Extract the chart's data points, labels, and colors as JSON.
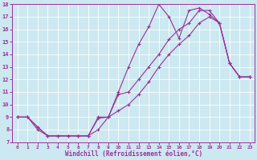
{
  "title": "",
  "xlabel": "Windchill (Refroidissement éolien,°C)",
  "bg_color": "#cce8f0",
  "line_color": "#993399",
  "xlim": [
    -0.5,
    23.5
  ],
  "ylim": [
    7,
    18
  ],
  "xticks": [
    0,
    1,
    2,
    3,
    4,
    5,
    6,
    7,
    8,
    9,
    10,
    11,
    12,
    13,
    14,
    15,
    16,
    17,
    18,
    19,
    20,
    21,
    22,
    23
  ],
  "yticks": [
    7,
    8,
    9,
    10,
    11,
    12,
    13,
    14,
    15,
    16,
    17,
    18
  ],
  "line1_x": [
    0,
    1,
    2,
    3,
    4,
    5,
    6,
    7,
    8,
    9,
    10,
    11,
    12,
    13,
    14,
    15,
    16,
    17,
    18,
    19,
    20,
    21,
    22,
    23
  ],
  "line1_y": [
    9,
    9,
    8.2,
    7.5,
    7.5,
    7.5,
    7.5,
    7.5,
    8.9,
    9.0,
    10.8,
    11.0,
    12.0,
    13.0,
    14.0,
    15.2,
    16.0,
    16.5,
    17.5,
    17.5,
    16.5,
    13.3,
    12.2,
    12.2
  ],
  "line2_x": [
    0,
    1,
    2,
    3,
    4,
    5,
    6,
    7,
    8,
    9,
    10,
    11,
    12,
    13,
    14,
    15,
    16,
    17,
    18,
    19,
    20,
    21,
    22,
    23
  ],
  "line2_y": [
    9,
    9,
    8.2,
    7.5,
    7.5,
    7.5,
    7.5,
    7.5,
    9.0,
    9.0,
    11.0,
    13.0,
    14.8,
    16.2,
    18.0,
    17.0,
    15.3,
    17.5,
    17.7,
    17.2,
    16.5,
    13.3,
    12.2,
    12.2
  ],
  "line3_x": [
    0,
    1,
    2,
    3,
    4,
    5,
    6,
    7,
    8,
    9,
    10,
    11,
    12,
    13,
    14,
    15,
    16,
    17,
    18,
    19,
    20,
    21,
    22,
    23
  ],
  "line3_y": [
    9,
    9,
    8.0,
    7.5,
    7.5,
    7.5,
    7.5,
    7.5,
    8.0,
    9.0,
    9.5,
    10.0,
    10.8,
    11.8,
    13.0,
    14.0,
    14.8,
    15.5,
    16.5,
    17.0,
    16.5,
    13.3,
    12.2,
    12.2
  ],
  "figsize": [
    3.2,
    2.0
  ],
  "dpi": 100
}
